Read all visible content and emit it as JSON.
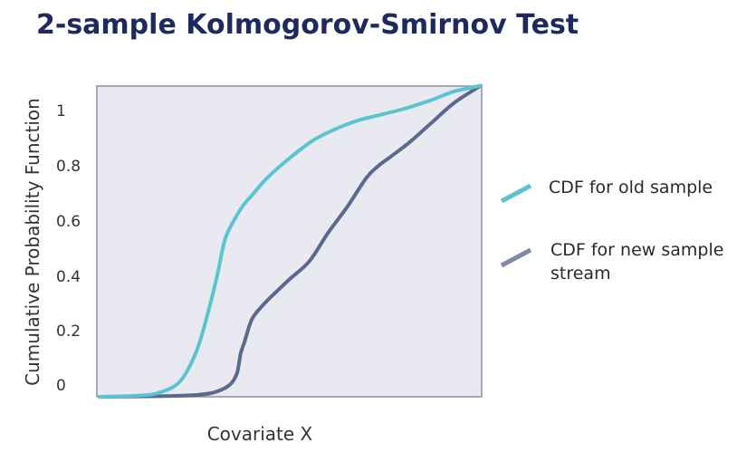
{
  "page": {
    "title": "2-sample Kolmogorov-Smirnov Test"
  },
  "chart_data": {
    "type": "line",
    "title": "",
    "xlabel": "Covariate X",
    "ylabel": "Cumulative Probability Function",
    "ylim": [
      0,
      1
    ],
    "y_ticks": [
      "0",
      "0.2",
      "0.4",
      "0.6",
      "0.8",
      "1"
    ],
    "y_tick_values": [
      0,
      0.2,
      0.4,
      0.6,
      0.8,
      1
    ],
    "x_ticks": [],
    "xlim": [
      0,
      1
    ],
    "grid": false,
    "legend_position": "right",
    "plot_background": "#e9eaf1",
    "series": [
      {
        "name": "CDF for old sample",
        "color": "#5bc4d1",
        "x": [
          0,
          0.1,
          0.15,
          0.2,
          0.23,
          0.26,
          0.29,
          0.31,
          0.33,
          0.36,
          0.38,
          0.4,
          0.44,
          0.5,
          0.56,
          0.62,
          0.68,
          0.74,
          0.8,
          0.87,
          0.93,
          1
        ],
        "y": [
          0,
          0.004,
          0.012,
          0.04,
          0.09,
          0.18,
          0.32,
          0.43,
          0.55,
          0.63,
          0.67,
          0.7,
          0.76,
          0.83,
          0.89,
          0.93,
          0.96,
          0.98,
          1.0,
          1.03,
          1.06,
          1.08
        ]
      },
      {
        "name": "CDF for new sample stream",
        "color": "#5a6a8e",
        "x": [
          0,
          0.15,
          0.25,
          0.3,
          0.34,
          0.36,
          0.37,
          0.38,
          0.4,
          0.43,
          0.46,
          0.5,
          0.55,
          0.6,
          0.65,
          0.7,
          0.73,
          0.76,
          0.81,
          0.87,
          0.93,
          1
        ],
        "y": [
          0,
          0.002,
          0.006,
          0.015,
          0.04,
          0.08,
          0.15,
          0.19,
          0.27,
          0.32,
          0.36,
          0.41,
          0.47,
          0.57,
          0.66,
          0.76,
          0.8,
          0.83,
          0.88,
          0.95,
          1.02,
          1.08
        ]
      }
    ]
  }
}
